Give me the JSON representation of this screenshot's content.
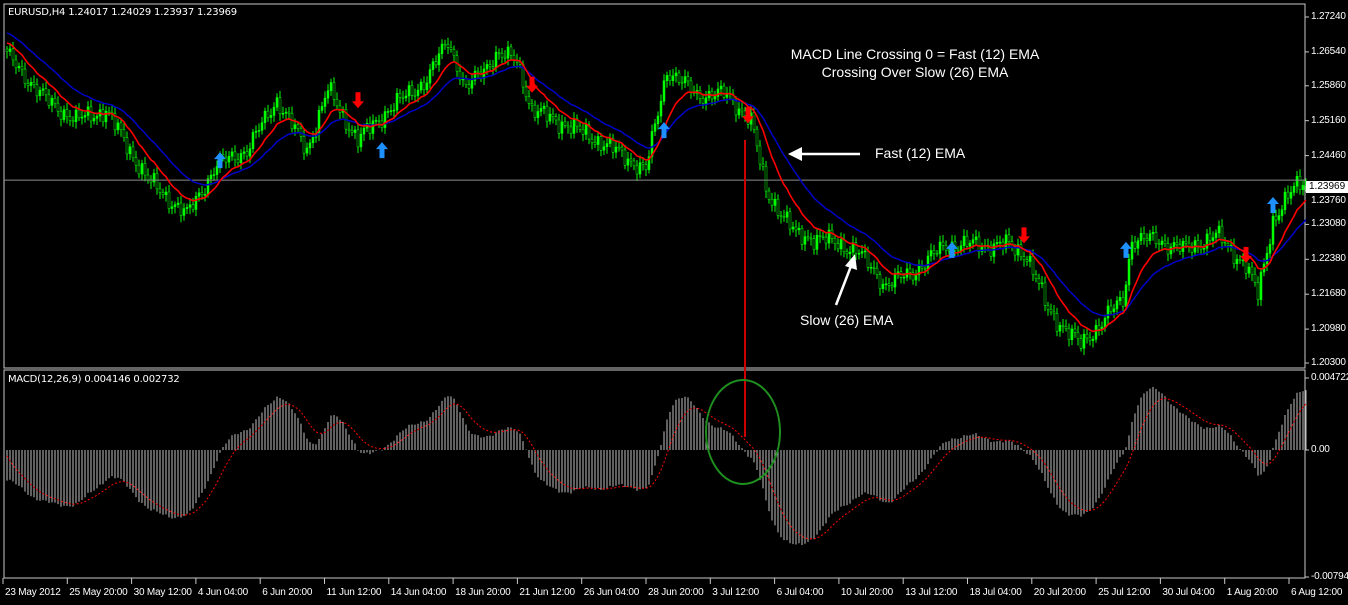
{
  "header": {
    "symbol_info": "EURUSD,H4  1.24017 1.24029 1.23937 1.23969",
    "macd_info": "MACD(12,26,9) 0.004146 0.002732"
  },
  "price_axis": {
    "labels": [
      "1.27240",
      "1.26540",
      "1.25860",
      "1.25160",
      "1.24460",
      "1.23760",
      "1.23080",
      "1.22380",
      "1.21680",
      "1.20980",
      "1.20300"
    ],
    "current_price": "1.23969"
  },
  "macd_axis": {
    "labels": [
      "0.004722",
      "0.00",
      "-0.00794"
    ]
  },
  "time_axis": {
    "labels": [
      "23 May 2012",
      "25 May 20:00",
      "30 May 12:00",
      "4 Jun 04:00",
      "6 Jun 20:00",
      "11 Jun 12:00",
      "14 Jun 04:00",
      "18 Jun 20:00",
      "21 Jun 12:00",
      "26 Jun 04:00",
      "28 Jun 20:00",
      "3 Jul 12:00",
      "6 Jul 04:00",
      "10 Jul 20:00",
      "13 Jul 12:00",
      "18 Jul 04:00",
      "20 Jul 20:00",
      "25 Jul 12:00",
      "30 Jul 04:00",
      "1 Aug 20:00",
      "6 Aug 12:00"
    ]
  },
  "annotations": {
    "title_line1": "MACD Line Crossing 0 = Fast (12) EMA",
    "title_line2": "Crossing Over Slow (26) EMA",
    "fast_label": "Fast (12) EMA",
    "slow_label": "Slow (26) EMA"
  },
  "colors": {
    "background": "#000000",
    "candle": "#00ff00",
    "fast_ema": "#ff0000",
    "slow_ema": "#0000c8",
    "buy_arrow": "#1e90ff",
    "sell_arrow": "#ff0000",
    "macd_histogram": "#c0c0c0",
    "macd_signal": "#ff0000",
    "highlight_circle": "#1f8f1f",
    "crossing_line": "#cc0000"
  },
  "chart_data": {
    "type": "candlestick",
    "symbol": "EURUSD",
    "timeframe": "H4",
    "ylim": [
      1.203,
      1.2724
    ],
    "macd_ylim": [
      -0.00794,
      0.004722
    ],
    "fast_ema_period": 12,
    "slow_ema_period": 26,
    "signal_period": 9,
    "close_path": [
      [
        0,
        1.2648
      ],
      [
        13,
        1.2558
      ],
      [
        23,
        1.2517
      ],
      [
        33,
        1.2537
      ],
      [
        47,
        1.2397
      ],
      [
        60,
        1.2327
      ],
      [
        70,
        1.2427
      ],
      [
        80,
        1.2457
      ],
      [
        90,
        1.2558
      ],
      [
        100,
        1.2457
      ],
      [
        107,
        1.2578
      ],
      [
        117,
        1.2477
      ],
      [
        127,
        1.2537
      ],
      [
        140,
        1.2598
      ],
      [
        147,
        1.2678
      ],
      [
        153,
        1.2578
      ],
      [
        163,
        1.2648
      ],
      [
        170,
        1.2638
      ],
      [
        175,
        1.2537
      ],
      [
        187,
        1.2507
      ],
      [
        200,
        1.2467
      ],
      [
        213,
        1.2417
      ],
      [
        220,
        1.2618
      ],
      [
        230,
        1.2568
      ],
      [
        240,
        1.2568
      ],
      [
        248,
        1.2517
      ],
      [
        253,
        1.2377
      ],
      [
        263,
        1.2287
      ],
      [
        273,
        1.2277
      ],
      [
        283,
        1.2257
      ],
      [
        293,
        1.2186
      ],
      [
        303,
        1.2216
      ],
      [
        313,
        1.2267
      ],
      [
        323,
        1.2267
      ],
      [
        333,
        1.2267
      ],
      [
        340,
        1.2247
      ],
      [
        347,
        1.2136
      ],
      [
        358,
        1.2066
      ],
      [
        367,
        1.2126
      ],
      [
        372,
        1.2156
      ],
      [
        375,
        1.2277
      ],
      [
        383,
        1.2277
      ],
      [
        393,
        1.2257
      ],
      [
        403,
        1.2287
      ],
      [
        413,
        1.2227
      ],
      [
        417,
        1.2166
      ],
      [
        422,
        1.2317
      ],
      [
        430,
        1.2387
      ],
      [
        433,
        1.2397
      ]
    ],
    "buy_signals": [
      [
        71,
        1.2437
      ],
      [
        125,
        1.2457
      ],
      [
        219,
        1.2497
      ],
      [
        315,
        1.2257
      ],
      [
        373,
        1.2257
      ],
      [
        422,
        1.2347
      ]
    ],
    "sell_signals": [
      [
        117,
        1.2557
      ],
      [
        175,
        1.2588
      ],
      [
        247,
        1.2527
      ],
      [
        339,
        1.2286
      ],
      [
        413,
        1.2247
      ]
    ],
    "crossing_bar": 247
  }
}
